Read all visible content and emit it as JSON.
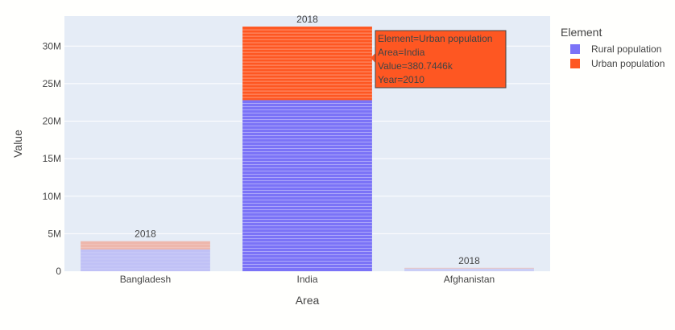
{
  "chart_data": {
    "type": "bar",
    "barmode": "stack",
    "categories": [
      "Bangladesh",
      "India",
      "Afghanistan"
    ],
    "series": [
      {
        "name": "Rural population",
        "color": "#7b73f7",
        "values": [
          2900000,
          22800000,
          350000
        ]
      },
      {
        "name": "Urban population",
        "color": "#fe5722",
        "values": [
          1100000,
          9800000,
          100000
        ]
      }
    ],
    "bar_opacity": [
      0.35,
      1.0,
      0.25
    ],
    "xlabel": "Area",
    "ylabel": "Value",
    "ylim": [
      0,
      34000000
    ],
    "yticks": [
      0,
      5000000,
      10000000,
      15000000,
      20000000,
      25000000,
      30000000
    ],
    "ytick_labels": [
      "0",
      "5M",
      "10M",
      "15M",
      "20M",
      "25M",
      "30M"
    ],
    "bar_annotations": [
      "2018",
      "2018",
      "2018"
    ],
    "legend": {
      "title": "Element",
      "position": "right"
    },
    "tooltip": {
      "lines": [
        "Element=Urban population",
        "Area=India",
        "Value=380.7446k",
        "Year=2010"
      ],
      "color": "#fe5722"
    },
    "plot_background": "#e5ecf6",
    "grid": true
  }
}
